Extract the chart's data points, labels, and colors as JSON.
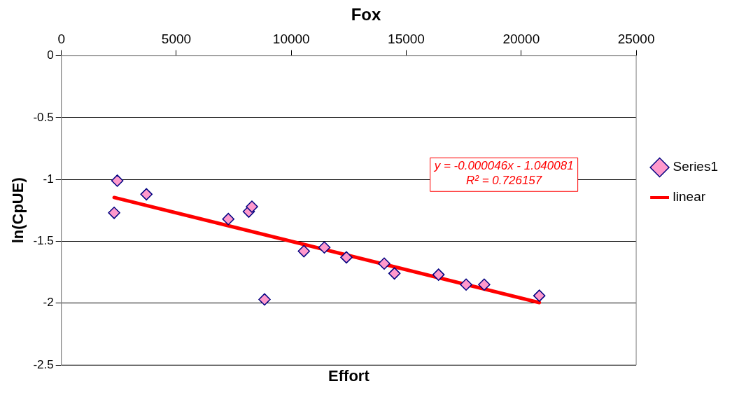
{
  "chart_data": {
    "type": "scatter",
    "title": "Fox",
    "xlabel": "Effort",
    "ylabel": "ln(CpUE)",
    "xlim": [
      0,
      25000
    ],
    "xticks": [
      0,
      5000,
      10000,
      15000,
      20000,
      25000
    ],
    "ylim": [
      -2.5,
      0
    ],
    "yticks": [
      -2.5,
      -2,
      -1.5,
      -1,
      -0.5,
      0
    ],
    "grid": "y",
    "legend": "right",
    "marker": "diamond",
    "series": [
      {
        "name": "Series1",
        "color": "#ff99cc",
        "x": [
          2295,
          2432,
          3699,
          7260,
          8151,
          8288,
          8836,
          10548,
          11438,
          12397,
          14041,
          14486,
          16404,
          17603,
          18390,
          20788
        ],
        "values": [
          -1.27,
          -1.01,
          -1.12,
          -1.32,
          -1.26,
          -1.22,
          -1.97,
          -1.58,
          -1.55,
          -1.63,
          -1.68,
          -1.76,
          -1.77,
          -1.85,
          -1.85,
          -1.94
        ]
      },
      {
        "name": "linear",
        "type": "line",
        "color": "#ff0000",
        "marker": "none",
        "x": [
          2295,
          20788
        ],
        "values": [
          -1.146,
          -1.996
        ]
      }
    ],
    "annotations": [
      "y = -0.000046x - 1.040081",
      "R² = 0.726157"
    ]
  }
}
